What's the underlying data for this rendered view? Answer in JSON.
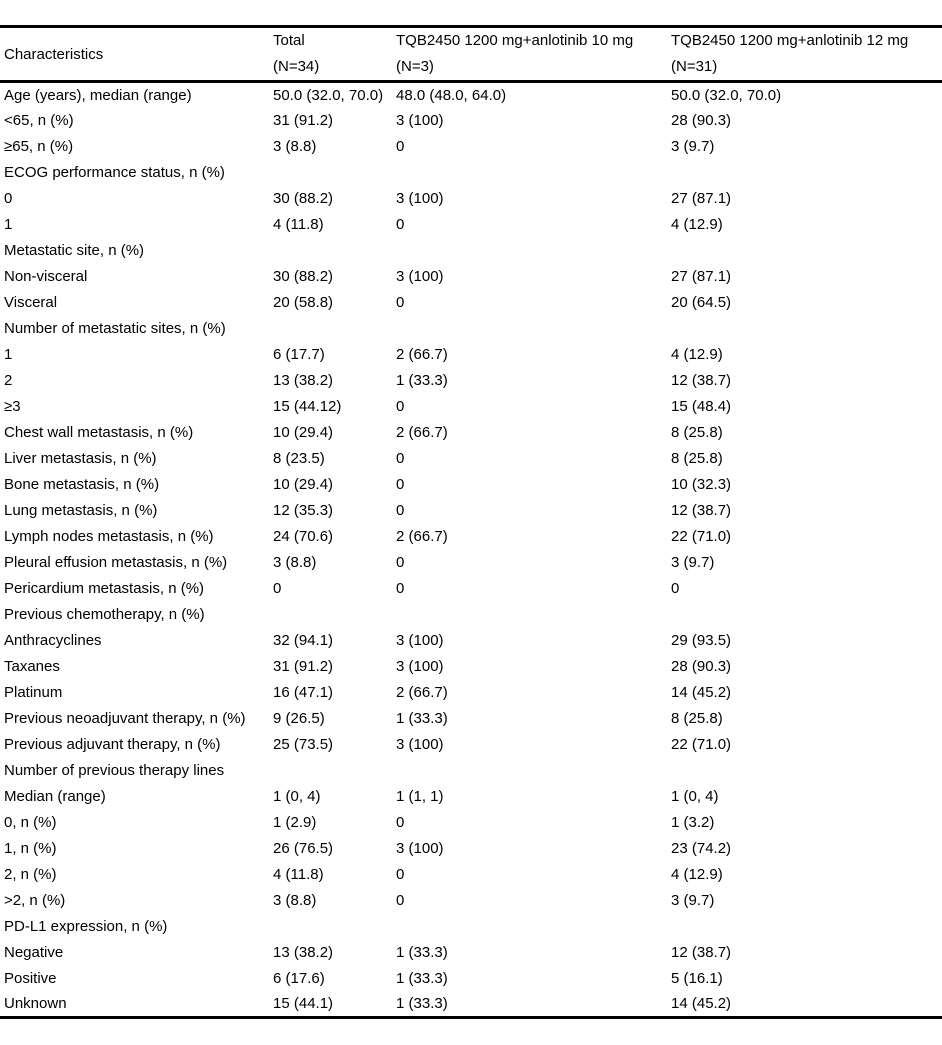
{
  "table": {
    "header": {
      "characteristics": "Characteristics",
      "columns": [
        {
          "line1": "Total",
          "line2": "(N=34)"
        },
        {
          "line1": "TQB2450 1200 mg+anlotinib 10 mg",
          "line2": "(N=3)"
        },
        {
          "line1": "TQB2450 1200 mg+anlotinib 12 mg",
          "line2": "(N=31)"
        }
      ]
    },
    "rows": [
      {
        "label": "Age (years), median (range)",
        "total": "50.0 (32.0, 70.0)",
        "arm10": "48.0 (48.0, 64.0)",
        "arm12": "50.0 (32.0, 70.0)"
      },
      {
        "label": "<65, n (%)",
        "total": "31 (91.2)",
        "arm10": "3 (100)",
        "arm12": "28 (90.3)"
      },
      {
        "label": "≥65, n (%)",
        "total": "3 (8.8)",
        "arm10": "0",
        "arm12": "3 (9.7)"
      },
      {
        "label": "ECOG performance status, n (%)",
        "total": "",
        "arm10": "",
        "arm12": ""
      },
      {
        "label": "0",
        "total": "30 (88.2)",
        "arm10": "3 (100)",
        "arm12": "27 (87.1)"
      },
      {
        "label": "1",
        "total": "4 (11.8)",
        "arm10": "0",
        "arm12": "4 (12.9)"
      },
      {
        "label": "Metastatic site, n (%)",
        "total": "",
        "arm10": "",
        "arm12": ""
      },
      {
        "label": "Non-visceral",
        "total": "30 (88.2)",
        "arm10": "3 (100)",
        "arm12": "27 (87.1)"
      },
      {
        "label": "Visceral",
        "total": "20 (58.8)",
        "arm10": "0",
        "arm12": "20 (64.5)"
      },
      {
        "label": "Number of metastatic sites, n (%)",
        "total": "",
        "arm10": "",
        "arm12": ""
      },
      {
        "label": "1",
        "total": "6 (17.7)",
        "arm10": "2 (66.7)",
        "arm12": "4 (12.9)"
      },
      {
        "label": "2",
        "total": "13 (38.2)",
        "arm10": "1 (33.3)",
        "arm12": "12 (38.7)"
      },
      {
        "label": "≥3",
        "total": "15 (44.12)",
        "arm10": "0",
        "arm12": "15 (48.4)"
      },
      {
        "label": "Chest wall metastasis, n (%)",
        "total": "10 (29.4)",
        "arm10": "2 (66.7)",
        "arm12": "8 (25.8)"
      },
      {
        "label": "Liver metastasis, n (%)",
        "total": "8 (23.5)",
        "arm10": "0",
        "arm12": "8 (25.8)"
      },
      {
        "label": "Bone metastasis, n (%)",
        "total": "10 (29.4)",
        "arm10": "0",
        "arm12": "10 (32.3)"
      },
      {
        "label": "Lung metastasis, n (%)",
        "total": "12 (35.3)",
        "arm10": "0",
        "arm12": "12 (38.7)"
      },
      {
        "label": "Lymph nodes metastasis, n (%)",
        "total": "24 (70.6)",
        "arm10": "2 (66.7)",
        "arm12": "22 (71.0)"
      },
      {
        "label": "Pleural effusion metastasis, n (%)",
        "total": "3 (8.8)",
        "arm10": "0",
        "arm12": "3 (9.7)"
      },
      {
        "label": "Pericardium metastasis, n (%)",
        "total": "0",
        "arm10": "0",
        "arm12": "0"
      },
      {
        "label": "Previous chemotherapy, n (%)",
        "total": "",
        "arm10": "",
        "arm12": ""
      },
      {
        "label": "Anthracyclines",
        "total": "32 (94.1)",
        "arm10": "3 (100)",
        "arm12": "29 (93.5)"
      },
      {
        "label": "Taxanes",
        "total": "31 (91.2)",
        "arm10": "3 (100)",
        "arm12": "28 (90.3)"
      },
      {
        "label": "Platinum",
        "total": "16 (47.1)",
        "arm10": "2 (66.7)",
        "arm12": "14 (45.2)"
      },
      {
        "label": "Previous neoadjuvant therapy, n (%)",
        "total": "9 (26.5)",
        "arm10": "1 (33.3)",
        "arm12": "8 (25.8)"
      },
      {
        "label": "Previous adjuvant therapy, n (%)",
        "total": "25 (73.5)",
        "arm10": "3 (100)",
        "arm12": "22 (71.0)"
      },
      {
        "label": "Number of previous therapy lines",
        "total": "",
        "arm10": "",
        "arm12": ""
      },
      {
        "label": "Median (range)",
        "total": "1 (0, 4)",
        "arm10": "1 (1, 1)",
        "arm12": "1 (0, 4)"
      },
      {
        "label": "0, n (%)",
        "total": "1 (2.9)",
        "arm10": "0",
        "arm12": "1 (3.2)"
      },
      {
        "label": "1, n (%)",
        "total": "26 (76.5)",
        "arm10": "3 (100)",
        "arm12": "23 (74.2)"
      },
      {
        "label": "2, n (%)",
        "total": "4 (11.8)",
        "arm10": "0",
        "arm12": "4 (12.9)"
      },
      {
        "label": ">2, n (%)",
        "total": "3 (8.8)",
        "arm10": "0",
        "arm12": "3 (9.7)"
      },
      {
        "label": "PD-L1 expression, n (%)",
        "total": "",
        "arm10": "",
        "arm12": ""
      },
      {
        "label": "Negative",
        "total": "13 (38.2)",
        "arm10": "1 (33.3)",
        "arm12": "12 (38.7)"
      },
      {
        "label": "Positive",
        "total": "6 (17.6)",
        "arm10": "1 (33.3)",
        "arm12": "5 (16.1)"
      },
      {
        "label": "Unknown",
        "total": "15 (44.1)",
        "arm10": "1 (33.3)",
        "arm12": "14 (45.2)"
      }
    ]
  }
}
